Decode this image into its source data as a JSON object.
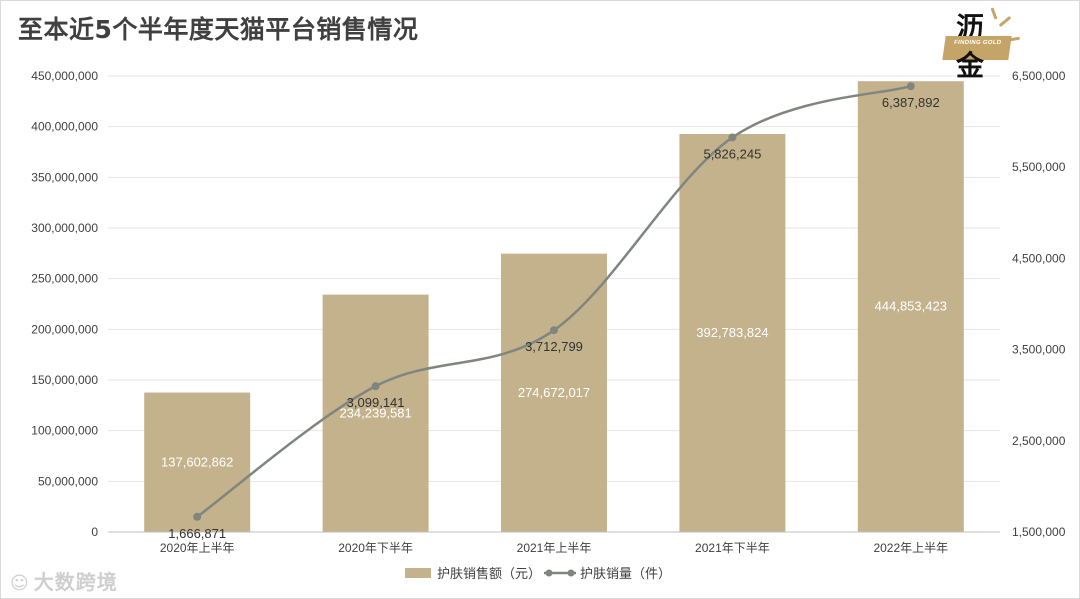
{
  "title": "至本近5个半年度天猫平台销售情况",
  "logo": {
    "top_char": "沥",
    "bottom_char": "金",
    "tag": "FINDING GOLD"
  },
  "watermark": {
    "text": "大数跨境"
  },
  "colors": {
    "bar": "#c4b28c",
    "line": "#7f8680",
    "axis_text": "#404040",
    "grid": "#e6e6e6",
    "logo": "#c5a467"
  },
  "chart_data": {
    "type": "bar",
    "categories": [
      "2020年上半年",
      "2020年下半年",
      "2021年上半年",
      "2021年下半年",
      "2022年上半年"
    ],
    "series": [
      {
        "name": "护肤销售额（元）",
        "type": "bar",
        "axis": "left",
        "values": [
          137602862,
          234239581,
          274672017,
          392783824,
          444853423
        ],
        "labels": [
          "137,602,862",
          "234,239,581",
          "274,672,017",
          "392,783,824",
          "444,853,423"
        ]
      },
      {
        "name": "护肤销量（件）",
        "type": "line",
        "axis": "right",
        "values": [
          1666871,
          3099141,
          3712799,
          5826245,
          6387892
        ],
        "labels": [
          "1,666,871",
          "3,099,141",
          "3,712,799",
          "5,826,245",
          "6,387,892"
        ]
      }
    ],
    "y_left": {
      "ylim": [
        0,
        450000000
      ],
      "ticks": [
        0,
        50000000,
        100000000,
        150000000,
        200000000,
        250000000,
        300000000,
        350000000,
        400000000,
        450000000
      ],
      "tick_labels": [
        "0",
        "50,000,000",
        "100,000,000",
        "150,000,000",
        "200,000,000",
        "250,000,000",
        "300,000,000",
        "350,000,000",
        "400,000,000",
        "450,000,000"
      ]
    },
    "y_right": {
      "ylim": [
        1500000,
        6500000
      ],
      "ticks": [
        1500000,
        2500000,
        3500000,
        4500000,
        5500000,
        6500000
      ],
      "tick_labels": [
        "1,500,000",
        "2,500,000",
        "3,500,000",
        "4,500,000",
        "5,500,000",
        "6,500,000"
      ]
    },
    "grid": true,
    "legend": "bottom"
  }
}
